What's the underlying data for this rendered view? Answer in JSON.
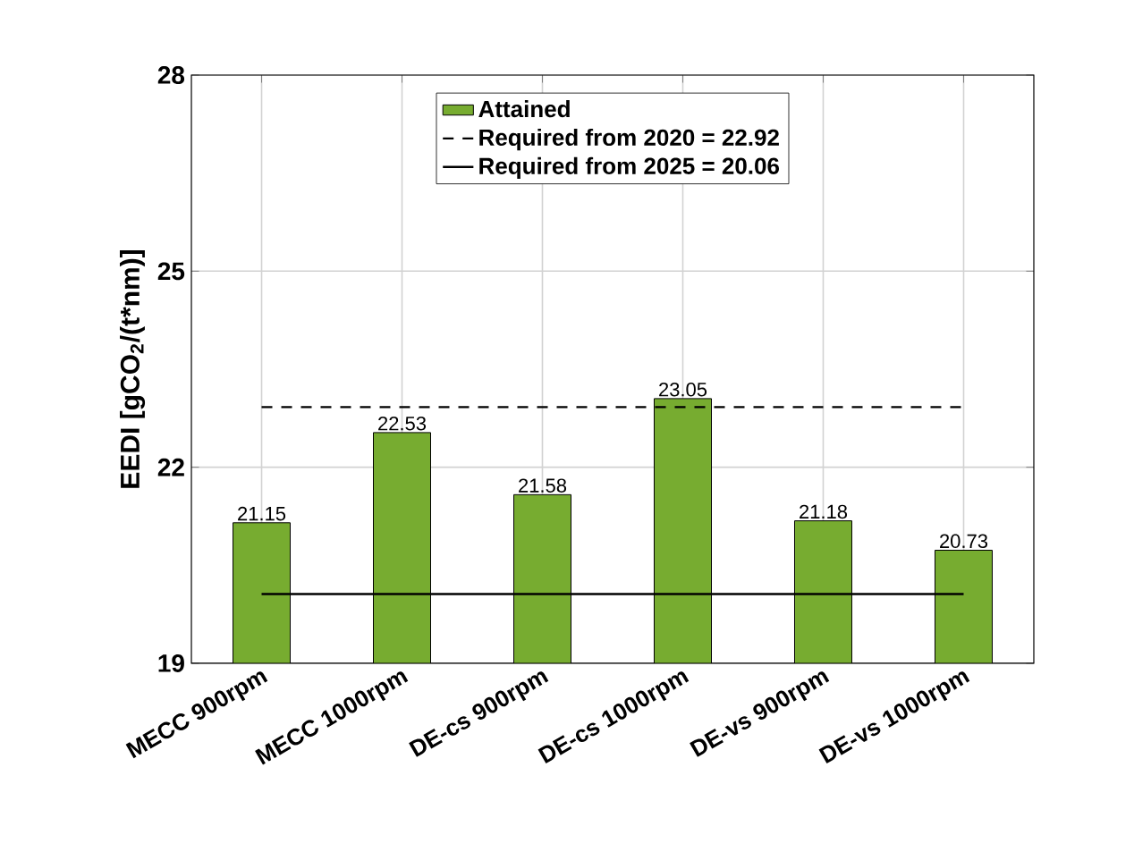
{
  "chart_data": {
    "type": "bar",
    "ylabel": "EEDI [gCO$_{2}$/(t*nm)]",
    "categories": [
      "MECC 900rpm",
      "MECC 1000rpm",
      "DE-cs 900rpm",
      "DE-cs 1000rpm",
      "DE-vs 900rpm",
      "DE-vs 1000rpm"
    ],
    "series": [
      {
        "name": "Attained",
        "color": "#77ac30",
        "values": [
          21.15,
          22.53,
          21.58,
          23.05,
          21.18,
          20.73
        ],
        "value_labels": [
          "21.15",
          "22.53",
          "21.58",
          "23.05",
          "21.18",
          "20.73"
        ]
      },
      {
        "name": "Required from 2020 = 22.92",
        "type": "line",
        "color": "#000000",
        "line_style": "dashed",
        "values": [
          22.92,
          22.92,
          22.92,
          22.92,
          22.92,
          22.92
        ]
      },
      {
        "name": "Required from 2025 = 20.06",
        "type": "line",
        "color": "#000000",
        "line_style": "solid",
        "values": [
          20.06,
          20.06,
          20.06,
          20.06,
          20.06,
          20.06
        ]
      }
    ],
    "ylim": [
      19,
      28
    ],
    "yticks": [
      19,
      22,
      25,
      28
    ],
    "grid": true,
    "legend": "top"
  }
}
